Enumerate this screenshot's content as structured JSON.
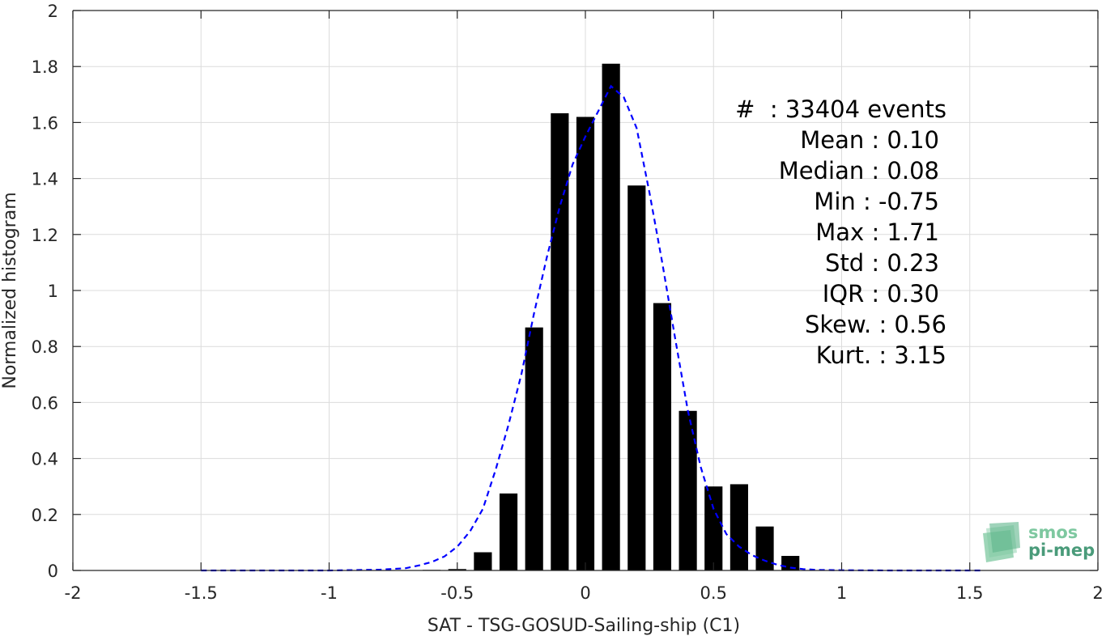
{
  "chart_data": {
    "type": "bar",
    "xlabel": "SAT - TSG-GOSUD-Sailing-ship (C1)",
    "ylabel": "Normalized histogram",
    "xlim": [
      -2,
      2
    ],
    "ylim": [
      0,
      2
    ],
    "xticks": [
      -2,
      -1.5,
      -1,
      -0.5,
      0,
      0.5,
      1,
      1.5,
      2
    ],
    "xtick_labels": [
      "-2",
      "-1.5",
      "-1",
      "-0.5",
      "0",
      "0.5",
      "1",
      "1.5",
      "2"
    ],
    "yticks": [
      0,
      0.2,
      0.4,
      0.6,
      0.8,
      1,
      1.2,
      1.4,
      1.6,
      1.8,
      2
    ],
    "ytick_labels": [
      "0",
      "0.2",
      "0.4",
      "0.6",
      "0.8",
      "1",
      "1.2",
      "1.4",
      "1.6",
      "1.8",
      "2"
    ],
    "grid": true,
    "bar_color": "#000000",
    "bar_width": 0.07,
    "bars": {
      "x": [
        -0.6,
        -0.5,
        -0.4,
        -0.3,
        -0.2,
        -0.1,
        0,
        0.1,
        0.2,
        0.3,
        0.4,
        0.5,
        0.6,
        0.7,
        0.8
      ],
      "y": [
        0.002,
        0.005,
        0.065,
        0.275,
        0.868,
        1.633,
        1.62,
        1.81,
        1.375,
        0.955,
        0.57,
        0.3,
        0.308,
        0.157,
        0.052
      ]
    },
    "fit_curve": {
      "color": "#0000ff",
      "style": "dashed",
      "x": [
        -1.5,
        -1.0,
        -0.8,
        -0.7,
        -0.65,
        -0.6,
        -0.55,
        -0.5,
        -0.45,
        -0.4,
        -0.35,
        -0.3,
        -0.25,
        -0.2,
        -0.15,
        -0.1,
        -0.05,
        0,
        0.05,
        0.1,
        0.15,
        0.2,
        0.25,
        0.3,
        0.35,
        0.4,
        0.45,
        0.5,
        0.55,
        0.6,
        0.65,
        0.7,
        0.75,
        0.8,
        0.85,
        0.9,
        1.0,
        1.2,
        1.55
      ],
      "y": [
        0,
        0,
        0.003,
        0.008,
        0.018,
        0.03,
        0.05,
        0.085,
        0.14,
        0.22,
        0.36,
        0.52,
        0.7,
        0.92,
        1.12,
        1.3,
        1.45,
        1.55,
        1.64,
        1.73,
        1.69,
        1.58,
        1.35,
        1.1,
        0.83,
        0.57,
        0.37,
        0.22,
        0.13,
        0.085,
        0.055,
        0.035,
        0.02,
        0.01,
        0.005,
        0.002,
        0.001,
        0,
        0
      ]
    },
    "stats": [
      {
        "label": "#",
        "sep": "  : ",
        "value": "33404 events"
      },
      {
        "label": "Mean",
        "sep": " : ",
        "value": "0.10"
      },
      {
        "label": "Median",
        "sep": " : ",
        "value": "0.08"
      },
      {
        "label": "Min",
        "sep": " : ",
        "value": "-0.75"
      },
      {
        "label": "Max",
        "sep": " : ",
        "value": "1.71"
      },
      {
        "label": "Std",
        "sep": " : ",
        "value": "0.23"
      },
      {
        "label": "IQR",
        "sep": " : ",
        "value": "0.30"
      },
      {
        "label": "Skew.",
        "sep": " : ",
        "value": "0.56"
      },
      {
        "label": "Kurt.",
        "sep": " : ",
        "value": "3.15"
      }
    ]
  },
  "logo": {
    "line1": "smos",
    "line2": "pi-mep",
    "color_light": "#7ec8a0",
    "color_dark": "#4a9b7a"
  }
}
